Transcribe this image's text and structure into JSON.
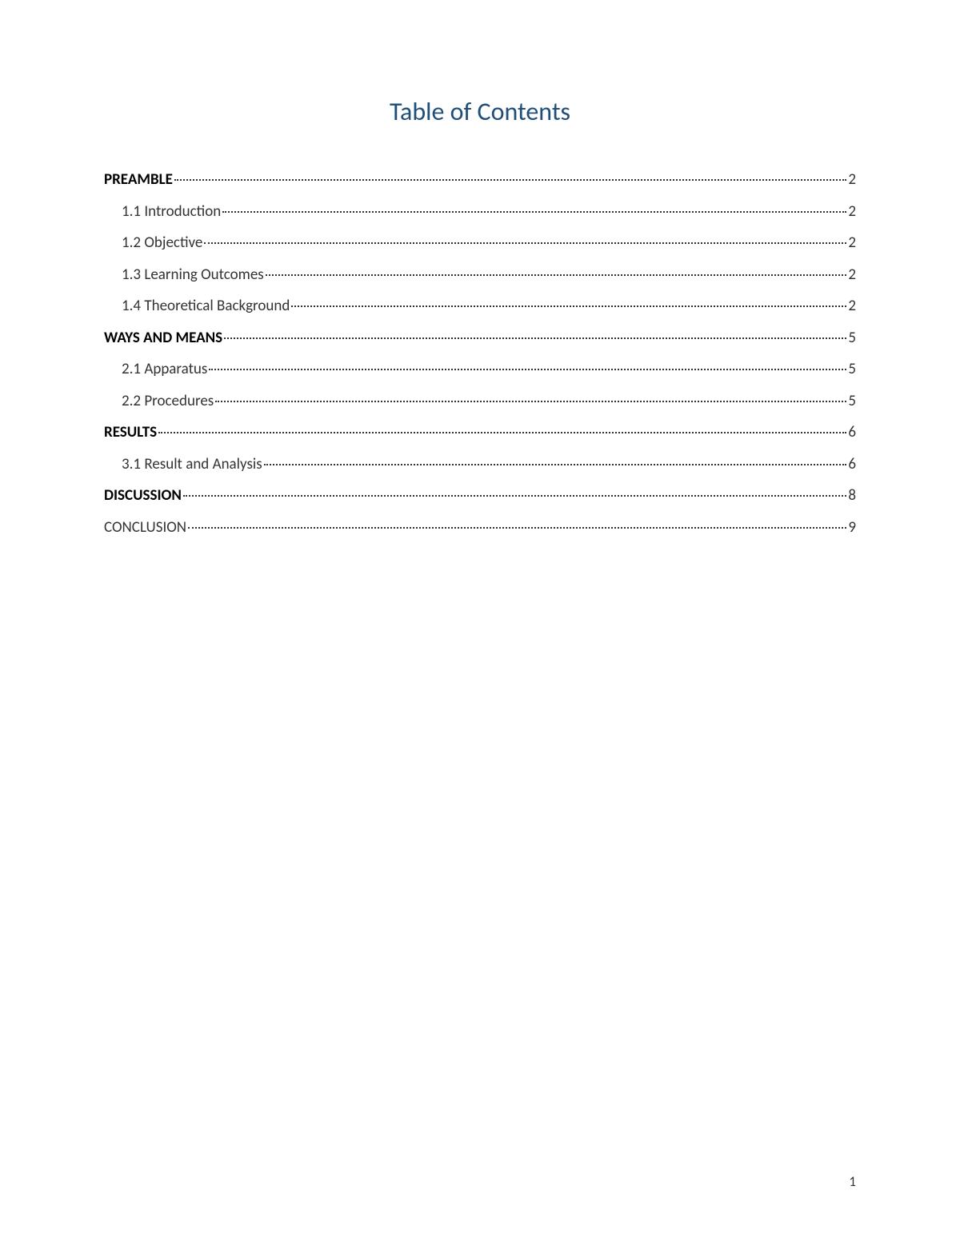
{
  "title": "Table of Contents",
  "title_color": "#1f4e79",
  "text_color": "#333333",
  "background_color": "#ffffff",
  "font_family": "Calibri",
  "title_fontsize": 32,
  "entry_fontsize": 19,
  "page_number": "1",
  "entries": [
    {
      "label": "PREAMBLE",
      "page": "2",
      "level": 0,
      "bold": true
    },
    {
      "label": "1.1 Introduction",
      "page": "2",
      "level": 1,
      "bold": false
    },
    {
      "label": "1.2 Objective",
      "page": "2",
      "level": 1,
      "bold": false
    },
    {
      "label": "1.3 Learning Outcomes",
      "page": "2",
      "level": 1,
      "bold": false
    },
    {
      "label": "1.4 Theoretical Background",
      "page": "2",
      "level": 1,
      "bold": false
    },
    {
      "label": "WAYS AND MEANS",
      "page": "5",
      "level": 0,
      "bold": true
    },
    {
      "label": "2.1 Apparatus",
      "page": "5",
      "level": 1,
      "bold": false
    },
    {
      "label": "2.2 Procedures",
      "page": "5",
      "level": 1,
      "bold": false
    },
    {
      "label": "RESULTS",
      "page": "6",
      "level": 0,
      "bold": true
    },
    {
      "label": "3.1 Result and Analysis",
      "page": "6",
      "level": 1,
      "bold": false
    },
    {
      "label": "DISCUSSION",
      "page": "8",
      "level": 0,
      "bold": true
    },
    {
      "label": "CONCLUSION",
      "page": "9",
      "level": 0,
      "bold": false
    }
  ]
}
